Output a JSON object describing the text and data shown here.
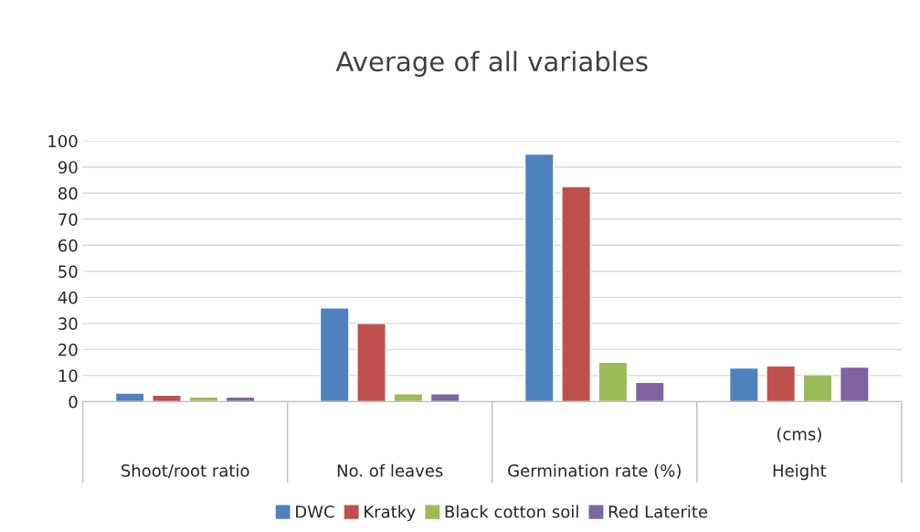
{
  "chart_data": {
    "type": "bar",
    "title": "Average of all variables",
    "categories": [
      "Shoot/root ratio",
      "No. of leaves",
      "Germination rate (%)",
      "Height"
    ],
    "series": [
      {
        "name": "DWC",
        "color": "#4f81bd",
        "values": [
          3.3,
          36,
          95,
          12.9
        ]
      },
      {
        "name": "Kratky",
        "color": "#c0504d",
        "values": [
          2.5,
          30,
          82.5,
          13.7
        ]
      },
      {
        "name": "Black cotton soil",
        "color": "#9bbb59",
        "values": [
          1.8,
          3,
          15.1,
          10.4
        ]
      },
      {
        "name": "Red Laterite",
        "color": "#8064a2",
        "values": [
          1.8,
          3,
          7.4,
          13.3
        ]
      }
    ],
    "annotations": [
      "(cms)"
    ],
    "ylim": [
      0,
      100
    ],
    "yticks": [
      0,
      10,
      20,
      30,
      40,
      50,
      60,
      70,
      80,
      90,
      100
    ],
    "grid": "y",
    "legend": "bottom"
  }
}
